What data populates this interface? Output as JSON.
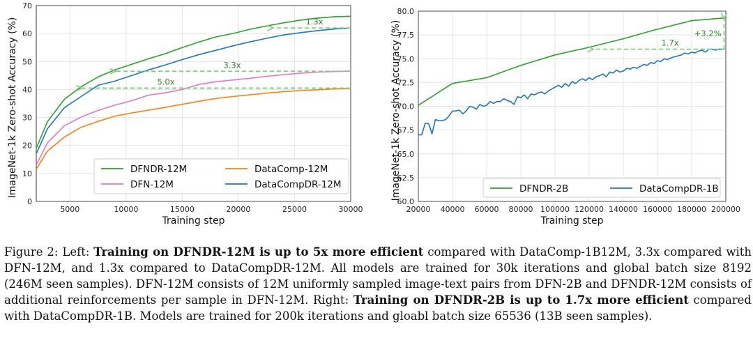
{
  "chart_data": [
    {
      "type": "line",
      "title": "",
      "xlabel": "Training step",
      "ylabel": "ImageNet-1k Zero-shot Accuracy (%)",
      "xlim": [
        2000,
        30000
      ],
      "ylim": [
        0,
        70
      ],
      "xticks": [
        5000,
        10000,
        15000,
        20000,
        25000,
        30000
      ],
      "yticks": [
        0,
        10,
        20,
        30,
        40,
        50,
        60,
        70
      ],
      "grid": true,
      "legend_position": "lower-center",
      "series": [
        {
          "name": "DFNDR-12M",
          "color": "#2ca02c",
          "x": [
            2000,
            3000,
            4500,
            6000,
            7500,
            9000,
            10500,
            12000,
            13500,
            15000,
            16500,
            18000,
            19500,
            21000,
            22500,
            24000,
            25500,
            27000,
            28500,
            30000
          ],
          "y": [
            19,
            28.5,
            36.5,
            41,
            44.5,
            47,
            49,
            51,
            52.8,
            55,
            57,
            58.8,
            60,
            61.5,
            62.7,
            63.8,
            64.8,
            65.5,
            66,
            66.2
          ]
        },
        {
          "name": "DFN-12M",
          "color": "#e377c2",
          "x": [
            2000,
            3000,
            4500,
            6000,
            7500,
            9000,
            10500,
            12000,
            13500,
            15000,
            16500,
            18000,
            19500,
            21000,
            22500,
            24000,
            25500,
            27000,
            28500,
            30000
          ],
          "y": [
            13,
            21,
            27,
            30.2,
            32.5,
            34.4,
            36,
            38,
            38.8,
            40,
            41.8,
            42.8,
            43.4,
            44,
            44.7,
            45.3,
            45.8,
            46.2,
            46.4,
            46.6
          ]
        },
        {
          "name": "DataComp-12M",
          "color": "#ff7f0e",
          "x": [
            2000,
            3000,
            4500,
            6000,
            7500,
            9000,
            10500,
            12000,
            13500,
            15000,
            16500,
            18000,
            19500,
            21000,
            22500,
            24000,
            25500,
            27000,
            28500,
            30000
          ],
          "y": [
            11.5,
            18,
            23,
            26.5,
            28.6,
            30.5,
            31.6,
            32.6,
            33.6,
            34.7,
            35.8,
            36.8,
            37.5,
            38.1,
            38.7,
            39.2,
            39.6,
            39.9,
            40.2,
            40.4
          ]
        },
        {
          "name": "DataCompDR-12M",
          "color": "#1f77b4",
          "x": [
            2000,
            3000,
            4500,
            6000,
            7500,
            9000,
            10500,
            12000,
            13500,
            15000,
            16500,
            18000,
            19500,
            21000,
            22500,
            24000,
            25500,
            27000,
            28500,
            30000
          ],
          "y": [
            17,
            26,
            33.5,
            37.5,
            41.5,
            43,
            45,
            47,
            48.8,
            50.7,
            52.5,
            54,
            55.6,
            57,
            58.3,
            59.5,
            60.3,
            61,
            61.6,
            62
          ]
        }
      ],
      "legend": [
        "DFNDR-12M",
        "DataComp-12M",
        "DFN-12M",
        "DataCompDR-12M"
      ],
      "annotations": [
        {
          "text": "1.3x",
          "from": [
            30000,
            62
          ],
          "to": [
            23000,
            62
          ]
        },
        {
          "text": "3.3x",
          "from": [
            30000,
            46.5
          ],
          "to": [
            9000,
            46.5
          ]
        },
        {
          "text": "5.0x",
          "from": [
            30000,
            40.5
          ],
          "to": [
            6000,
            40.5
          ]
        }
      ]
    },
    {
      "type": "line",
      "title": "",
      "xlabel": "Training step",
      "ylabel": "ImageNet-1k Zero-shot Accuracy (%)",
      "xlim": [
        20000,
        200000
      ],
      "ylim": [
        60,
        80
      ],
      "xticks": [
        20000,
        40000,
        60000,
        80000,
        100000,
        120000,
        140000,
        160000,
        180000,
        200000
      ],
      "yticks": [
        60.0,
        62.5,
        65.0,
        67.5,
        70.0,
        72.5,
        75.0,
        77.5,
        80.0
      ],
      "grid": true,
      "legend_position": "lower-center",
      "series": [
        {
          "name": "DFNDR-2B",
          "color": "#2ca02c",
          "x": [
            20000,
            40000,
            60000,
            80000,
            100000,
            120000,
            140000,
            160000,
            180000,
            200000
          ],
          "y": [
            70.1,
            72.4,
            73.0,
            74.3,
            75.4,
            76.2,
            77.1,
            78.1,
            79.0,
            79.3
          ]
        },
        {
          "name": "DataCompDR-1B",
          "color": "#1f77b4",
          "x": [
            20000,
            22000,
            24000,
            26000,
            28000,
            30000,
            32000,
            34000,
            36000,
            38000,
            40000,
            42000,
            44000,
            46000,
            48000,
            50000,
            52000,
            54000,
            56000,
            58000,
            60000,
            62000,
            64000,
            66000,
            68000,
            70000,
            72000,
            74000,
            76000,
            78000,
            80000,
            82000,
            84000,
            86000,
            88000,
            90000,
            92000,
            94000,
            96000,
            98000,
            100000,
            102000,
            104000,
            106000,
            108000,
            110000,
            112000,
            114000,
            116000,
            118000,
            120000,
            122000,
            124000,
            126000,
            128000,
            130000,
            132000,
            134000,
            136000,
            138000,
            140000,
            142000,
            144000,
            146000,
            148000,
            150000,
            152000,
            154000,
            156000,
            158000,
            160000,
            162000,
            164000,
            166000,
            168000,
            170000,
            172000,
            174000,
            176000,
            178000,
            180000,
            182000,
            184000,
            186000,
            188000,
            190000,
            192000,
            194000,
            196000,
            198000,
            200000
          ],
          "y": [
            67.0,
            67.0,
            68.2,
            68.2,
            67.1,
            68.6,
            68.5,
            68.5,
            68.6,
            69.0,
            69.5,
            69.5,
            69.6,
            69.2,
            69.5,
            70.0,
            69.9,
            69.7,
            70.2,
            70.0,
            70.1,
            70.5,
            70.3,
            70.5,
            70.5,
            70.8,
            70.6,
            70.5,
            70.2,
            71.0,
            70.9,
            71.2,
            70.8,
            71.3,
            71.2,
            71.4,
            71.5,
            71.3,
            71.6,
            71.8,
            72.0,
            72.2,
            72.0,
            72.4,
            72.1,
            72.6,
            72.4,
            72.7,
            72.9,
            72.7,
            73.0,
            72.8,
            73.1,
            73.2,
            73.4,
            73.1,
            73.6,
            73.5,
            73.8,
            73.6,
            73.7,
            74.0,
            73.9,
            74.1,
            74.0,
            74.2,
            74.4,
            74.3,
            74.6,
            74.5,
            74.8,
            74.7,
            75.0,
            74.9,
            75.1,
            75.2,
            75.3,
            75.4,
            75.6,
            75.5,
            75.7,
            75.6,
            75.8,
            75.9,
            75.7,
            76.0,
            76.0,
            75.9,
            76.0,
            76.0,
            76.0
          ]
        }
      ],
      "legend": [
        "DFNDR-2B",
        "DataCompDR-1B"
      ],
      "annotations": [
        {
          "text": "1.7x",
          "from": [
            200000,
            76
          ],
          "to": [
            122000,
            76
          ]
        },
        {
          "text": "+3.2%",
          "from": [
            199000,
            76
          ],
          "to": [
            199000,
            79.3
          ]
        }
      ]
    }
  ],
  "caption": {
    "prefix": "Figure 2: Left: ",
    "bold1": "Training on DFNDR-12M is up to 5x more efficient",
    "text1": " compared with DataComp-1B12M, 3.3x compared with DFN-12M, and 1.3x compared to DataCompDR-12M. All models are trained for 30k iterations and global batch size 8192 (246M seen samples). DFN-12M consists of 12M uniformly sampled image-text pairs from DFN-2B and DFNDR-12M consists of additional reinforcements per sample in DFN-12M. Right: ",
    "bold2": "Training on DFNDR-2B is up to 1.7x more efficient",
    "text2": " compared with DataCompDR-1B. Models are trained for 200k iterations and gloabl batch size 65536 (13B seen samples)."
  }
}
